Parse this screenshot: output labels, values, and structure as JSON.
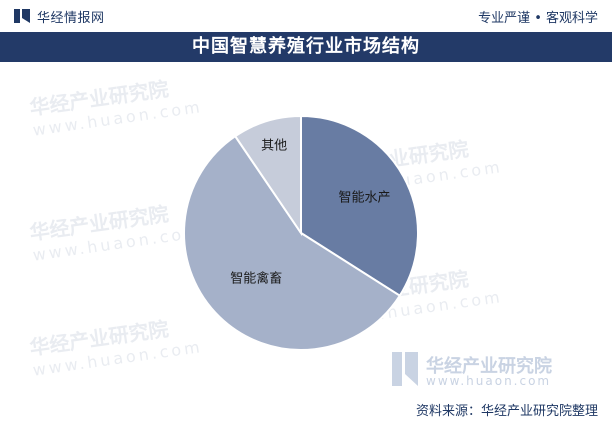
{
  "header": {
    "brand": "华经情报网",
    "slogan": "专业严谨 • 客观科学"
  },
  "title": "中国智慧养殖行业市场结构",
  "watermark": {
    "cn": "华经产业研究院",
    "url": "www.huaon.com"
  },
  "footer": {
    "source": "资料来源：华经产业研究院整理"
  },
  "colors": {
    "title_bar": "#233a68",
    "text": "#1f3864"
  },
  "chart_data": {
    "type": "pie",
    "title": "中国智慧养殖行业市场结构",
    "slices": [
      {
        "label": "智能水产",
        "value": 34.0,
        "color": "#687ca3"
      },
      {
        "label": "智能禽畜",
        "value": 56.5,
        "color": "#a5b1c9"
      },
      {
        "label": "其他",
        "value": 9.5,
        "color": "#c6ccda"
      }
    ],
    "start_angle_deg": 0,
    "direction": "clockwise",
    "legend": "none"
  }
}
